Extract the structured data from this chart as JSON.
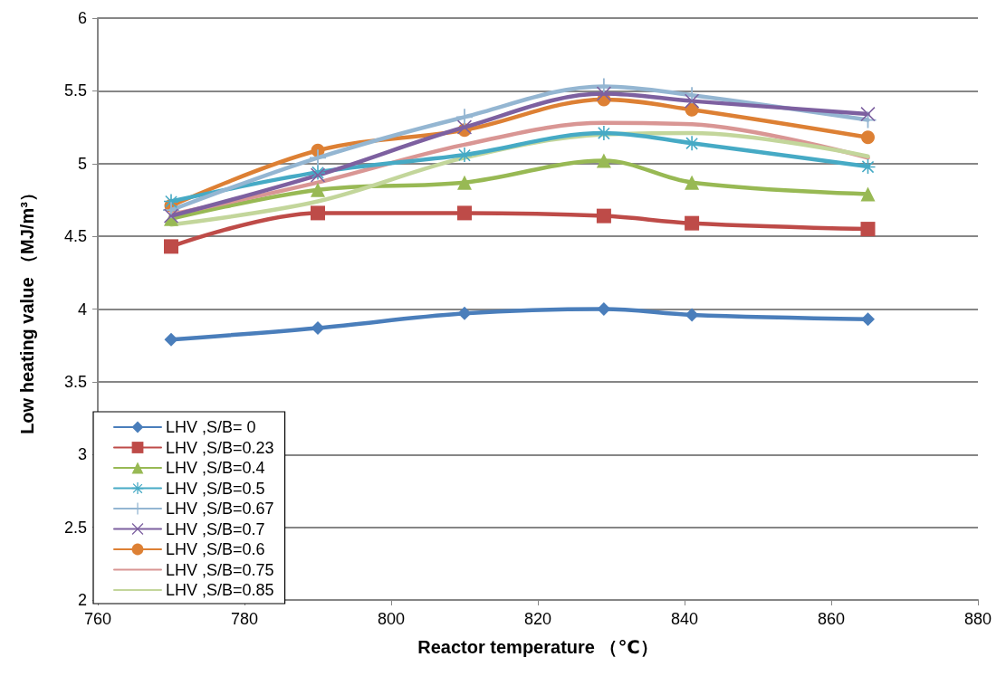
{
  "chart_data": {
    "type": "line",
    "xlabel": "Reactor temperature （℃）",
    "ylabel": "Low heating value （MJ/m³）",
    "x": [
      770,
      790,
      810,
      829,
      841,
      865
    ],
    "xlim": [
      760,
      880
    ],
    "xticks": [
      760,
      780,
      800,
      820,
      840,
      860,
      880
    ],
    "ylim": [
      2,
      6
    ],
    "yticks": [
      2,
      2.5,
      3,
      3.5,
      4,
      4.5,
      5,
      5.5,
      6
    ],
    "grid": "y",
    "legend": "bottom left",
    "series": [
      {
        "name": "LHV ,S/B= 0",
        "color": "#4a7ebb",
        "marker": "diamond",
        "values": [
          3.79,
          3.87,
          3.97,
          4.0,
          3.96,
          3.93
        ]
      },
      {
        "name": "LHV ,S/B=0.23",
        "color": "#be4b48",
        "marker": "square",
        "values": [
          4.43,
          4.66,
          4.66,
          4.64,
          4.59,
          4.55
        ]
      },
      {
        "name": "LHV ,S/B=0.4",
        "color": "#98b954",
        "marker": "triangle",
        "values": [
          4.62,
          4.82,
          4.87,
          5.02,
          4.87,
          4.79
        ]
      },
      {
        "name": "LHV ,S/B=0.5",
        "color": "#46aac5",
        "marker": "star",
        "values": [
          4.74,
          4.94,
          5.06,
          5.21,
          5.14,
          4.98
        ]
      },
      {
        "name": "LHV ,S/B=0.67",
        "color": "#94b6d2",
        "marker": "plus",
        "values": [
          4.68,
          5.04,
          5.32,
          5.53,
          5.47,
          5.3
        ]
      },
      {
        "name": "LHV ,S/B=0.7",
        "color": "#7d60a0",
        "marker": "cross",
        "values": [
          4.64,
          4.92,
          5.25,
          5.48,
          5.43,
          5.34
        ]
      },
      {
        "name": "LHV ,S/B=0.6",
        "color": "#dd8034",
        "marker": "circle",
        "values": [
          4.71,
          5.09,
          5.23,
          5.44,
          5.37,
          5.18
        ]
      },
      {
        "name": "LHV ,S/B=0.75",
        "color": "#d99694",
        "marker": "none",
        "values": [
          4.65,
          4.87,
          5.13,
          5.28,
          5.27,
          5.04
        ]
      },
      {
        "name": "LHV ,S/B=0.85",
        "color": "#c3d69b",
        "marker": "none",
        "values": [
          4.58,
          4.74,
          5.04,
          5.2,
          5.21,
          5.05
        ]
      }
    ]
  }
}
